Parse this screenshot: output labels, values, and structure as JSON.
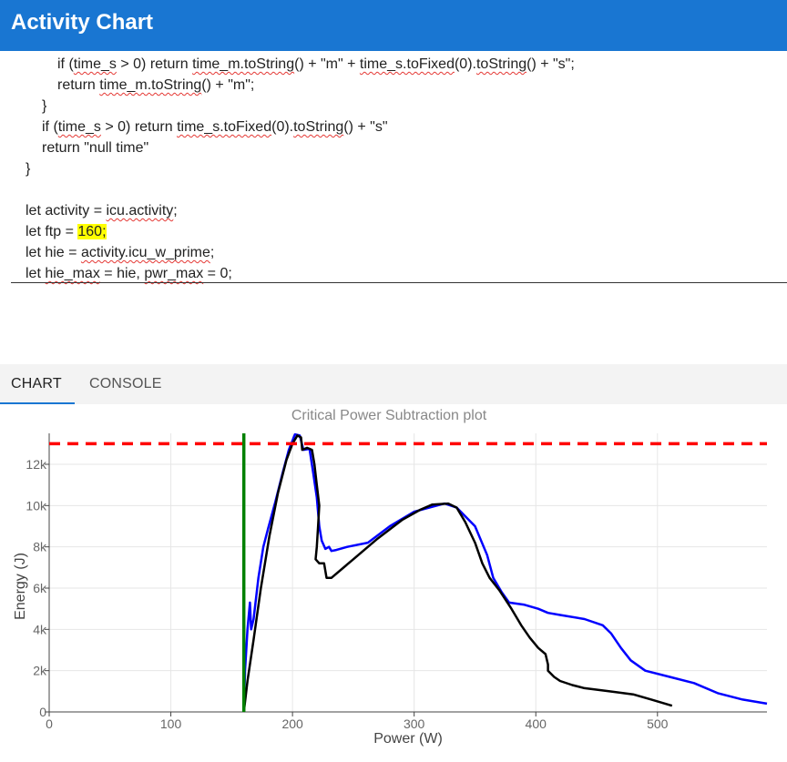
{
  "app": {
    "title": "Activity Chart"
  },
  "editor": {
    "lines": [
      {
        "indent": 2,
        "segments": [
          {
            "t": "if ("
          },
          {
            "t": "time_s",
            "sq": true
          },
          {
            "t": " > 0) return "
          },
          {
            "t": "time_m.toString",
            "sq": true
          },
          {
            "t": "() + \"m\" + "
          },
          {
            "t": "time_s.toFixed",
            "sq": true
          },
          {
            "t": "(0)."
          },
          {
            "t": "toString",
            "sq": true
          },
          {
            "t": "() + \"s\";"
          }
        ]
      },
      {
        "indent": 2,
        "segments": [
          {
            "t": "return "
          },
          {
            "t": "time_m.toString",
            "sq": true
          },
          {
            "t": "() + \"m\";"
          }
        ]
      },
      {
        "indent": 1,
        "segments": [
          {
            "t": "}"
          }
        ]
      },
      {
        "indent": 1,
        "segments": [
          {
            "t": "if ("
          },
          {
            "t": "time_s",
            "sq": true
          },
          {
            "t": " > 0) return "
          },
          {
            "t": "time_s.toFixed",
            "sq": true
          },
          {
            "t": "(0)."
          },
          {
            "t": "toString",
            "sq": true
          },
          {
            "t": "() + \"s\""
          }
        ]
      },
      {
        "indent": 1,
        "segments": [
          {
            "t": "return \"null time\""
          }
        ]
      },
      {
        "indent": 0,
        "segments": [
          {
            "t": "}"
          }
        ]
      },
      {
        "indent": 0,
        "segments": [
          {
            "t": ""
          }
        ]
      },
      {
        "indent": 0,
        "segments": [
          {
            "t": "let activity = "
          },
          {
            "t": "icu.activity",
            "sq": true
          },
          {
            "t": ";"
          }
        ]
      },
      {
        "indent": 0,
        "segments": [
          {
            "t": "let ftp = "
          },
          {
            "t": "160;",
            "hl": true
          }
        ]
      },
      {
        "indent": 0,
        "segments": [
          {
            "t": "let hie = "
          },
          {
            "t": "activity.icu_w_prime",
            "sq": true
          },
          {
            "t": ";"
          }
        ]
      },
      {
        "indent": 0,
        "segments": [
          {
            "t": "let "
          },
          {
            "t": "hie_max",
            "sq": true
          },
          {
            "t": " = hie, "
          },
          {
            "t": "pwr_max",
            "sq": true
          },
          {
            "t": " = 0;"
          }
        ]
      }
    ]
  },
  "tabs": [
    {
      "label": "CHART",
      "active": true
    },
    {
      "label": "CONSOLE",
      "active": false
    }
  ],
  "colors": {
    "appbar": "#1976d2",
    "blue_series": "#0000ff",
    "black_series": "#000000",
    "ftp_line": "#008000",
    "max_line": "#ff0000"
  },
  "chart_data": {
    "type": "line",
    "title": "Critical Power Subtraction plot",
    "xlabel": "Power (W)",
    "ylabel": "Energy (J)",
    "xlim": [
      0,
      590
    ],
    "ylim": [
      0,
      13500
    ],
    "x_ticks": [
      0,
      100,
      200,
      300,
      400,
      500
    ],
    "y_ticks": [
      0,
      2000,
      4000,
      6000,
      8000,
      10000,
      12000
    ],
    "x_tick_labels": [
      "0",
      "100",
      "200",
      "300",
      "400",
      "500"
    ],
    "y_tick_labels": [
      "0",
      "2k",
      "4k",
      "6k",
      "8k",
      "10k",
      "12k"
    ],
    "grid": true,
    "ftp_vertical_x": 160,
    "max_horizontal_y": 13000,
    "series": [
      {
        "color": "blue",
        "points": [
          [
            160,
            0
          ],
          [
            161,
            2000
          ],
          [
            163,
            4000
          ],
          [
            165,
            5300
          ],
          [
            166,
            4000
          ],
          [
            168,
            4500
          ],
          [
            172,
            6500
          ],
          [
            176,
            8000
          ],
          [
            180,
            8900
          ],
          [
            186,
            10200
          ],
          [
            192,
            11600
          ],
          [
            197,
            12700
          ],
          [
            202,
            13450
          ],
          [
            206,
            13400
          ],
          [
            209,
            12700
          ],
          [
            214,
            12750
          ],
          [
            217,
            11600
          ],
          [
            220,
            10400
          ],
          [
            222,
            9000
          ],
          [
            224,
            8300
          ],
          [
            227,
            7900
          ],
          [
            230,
            8000
          ],
          [
            232,
            7800
          ],
          [
            236,
            7850
          ],
          [
            245,
            8000
          ],
          [
            262,
            8200
          ],
          [
            280,
            9000
          ],
          [
            300,
            9700
          ],
          [
            325,
            10100
          ],
          [
            335,
            9900
          ],
          [
            350,
            9000
          ],
          [
            360,
            7600
          ],
          [
            365,
            6500
          ],
          [
            372,
            5800
          ],
          [
            378,
            5300
          ],
          [
            390,
            5200
          ],
          [
            402,
            5000
          ],
          [
            410,
            4800
          ],
          [
            420,
            4700
          ],
          [
            440,
            4500
          ],
          [
            455,
            4200
          ],
          [
            462,
            3800
          ],
          [
            470,
            3100
          ],
          [
            478,
            2500
          ],
          [
            490,
            2000
          ],
          [
            510,
            1700
          ],
          [
            530,
            1400
          ],
          [
            550,
            900
          ],
          [
            570,
            600
          ],
          [
            590,
            400
          ]
        ]
      },
      {
        "color": "black",
        "points": [
          [
            160,
            0
          ],
          [
            163,
            1500
          ],
          [
            168,
            3500
          ],
          [
            174,
            6000
          ],
          [
            181,
            8500
          ],
          [
            188,
            10600
          ],
          [
            195,
            12200
          ],
          [
            200,
            13000
          ],
          [
            204,
            13400
          ],
          [
            207,
            13300
          ],
          [
            208,
            12700
          ],
          [
            212,
            12800
          ],
          [
            216,
            12700
          ],
          [
            218,
            12000
          ],
          [
            220,
            11000
          ],
          [
            222,
            10000
          ],
          [
            221,
            9000
          ],
          [
            220,
            8000
          ],
          [
            219,
            7400
          ],
          [
            222,
            7200
          ],
          [
            226,
            7200
          ],
          [
            228,
            6500
          ],
          [
            232,
            6500
          ],
          [
            250,
            7400
          ],
          [
            270,
            8400
          ],
          [
            290,
            9300
          ],
          [
            305,
            9800
          ],
          [
            315,
            10050
          ],
          [
            328,
            10100
          ],
          [
            335,
            9900
          ],
          [
            342,
            9200
          ],
          [
            350,
            8200
          ],
          [
            356,
            7200
          ],
          [
            362,
            6500
          ],
          [
            370,
            5900
          ],
          [
            380,
            5000
          ],
          [
            388,
            4200
          ],
          [
            395,
            3600
          ],
          [
            402,
            3100
          ],
          [
            408,
            2800
          ],
          [
            410,
            2300
          ],
          [
            410,
            2000
          ],
          [
            415,
            1700
          ],
          [
            420,
            1500
          ],
          [
            430,
            1300
          ],
          [
            440,
            1150
          ],
          [
            460,
            1000
          ],
          [
            480,
            850
          ],
          [
            495,
            600
          ],
          [
            512,
            300
          ]
        ]
      }
    ]
  }
}
